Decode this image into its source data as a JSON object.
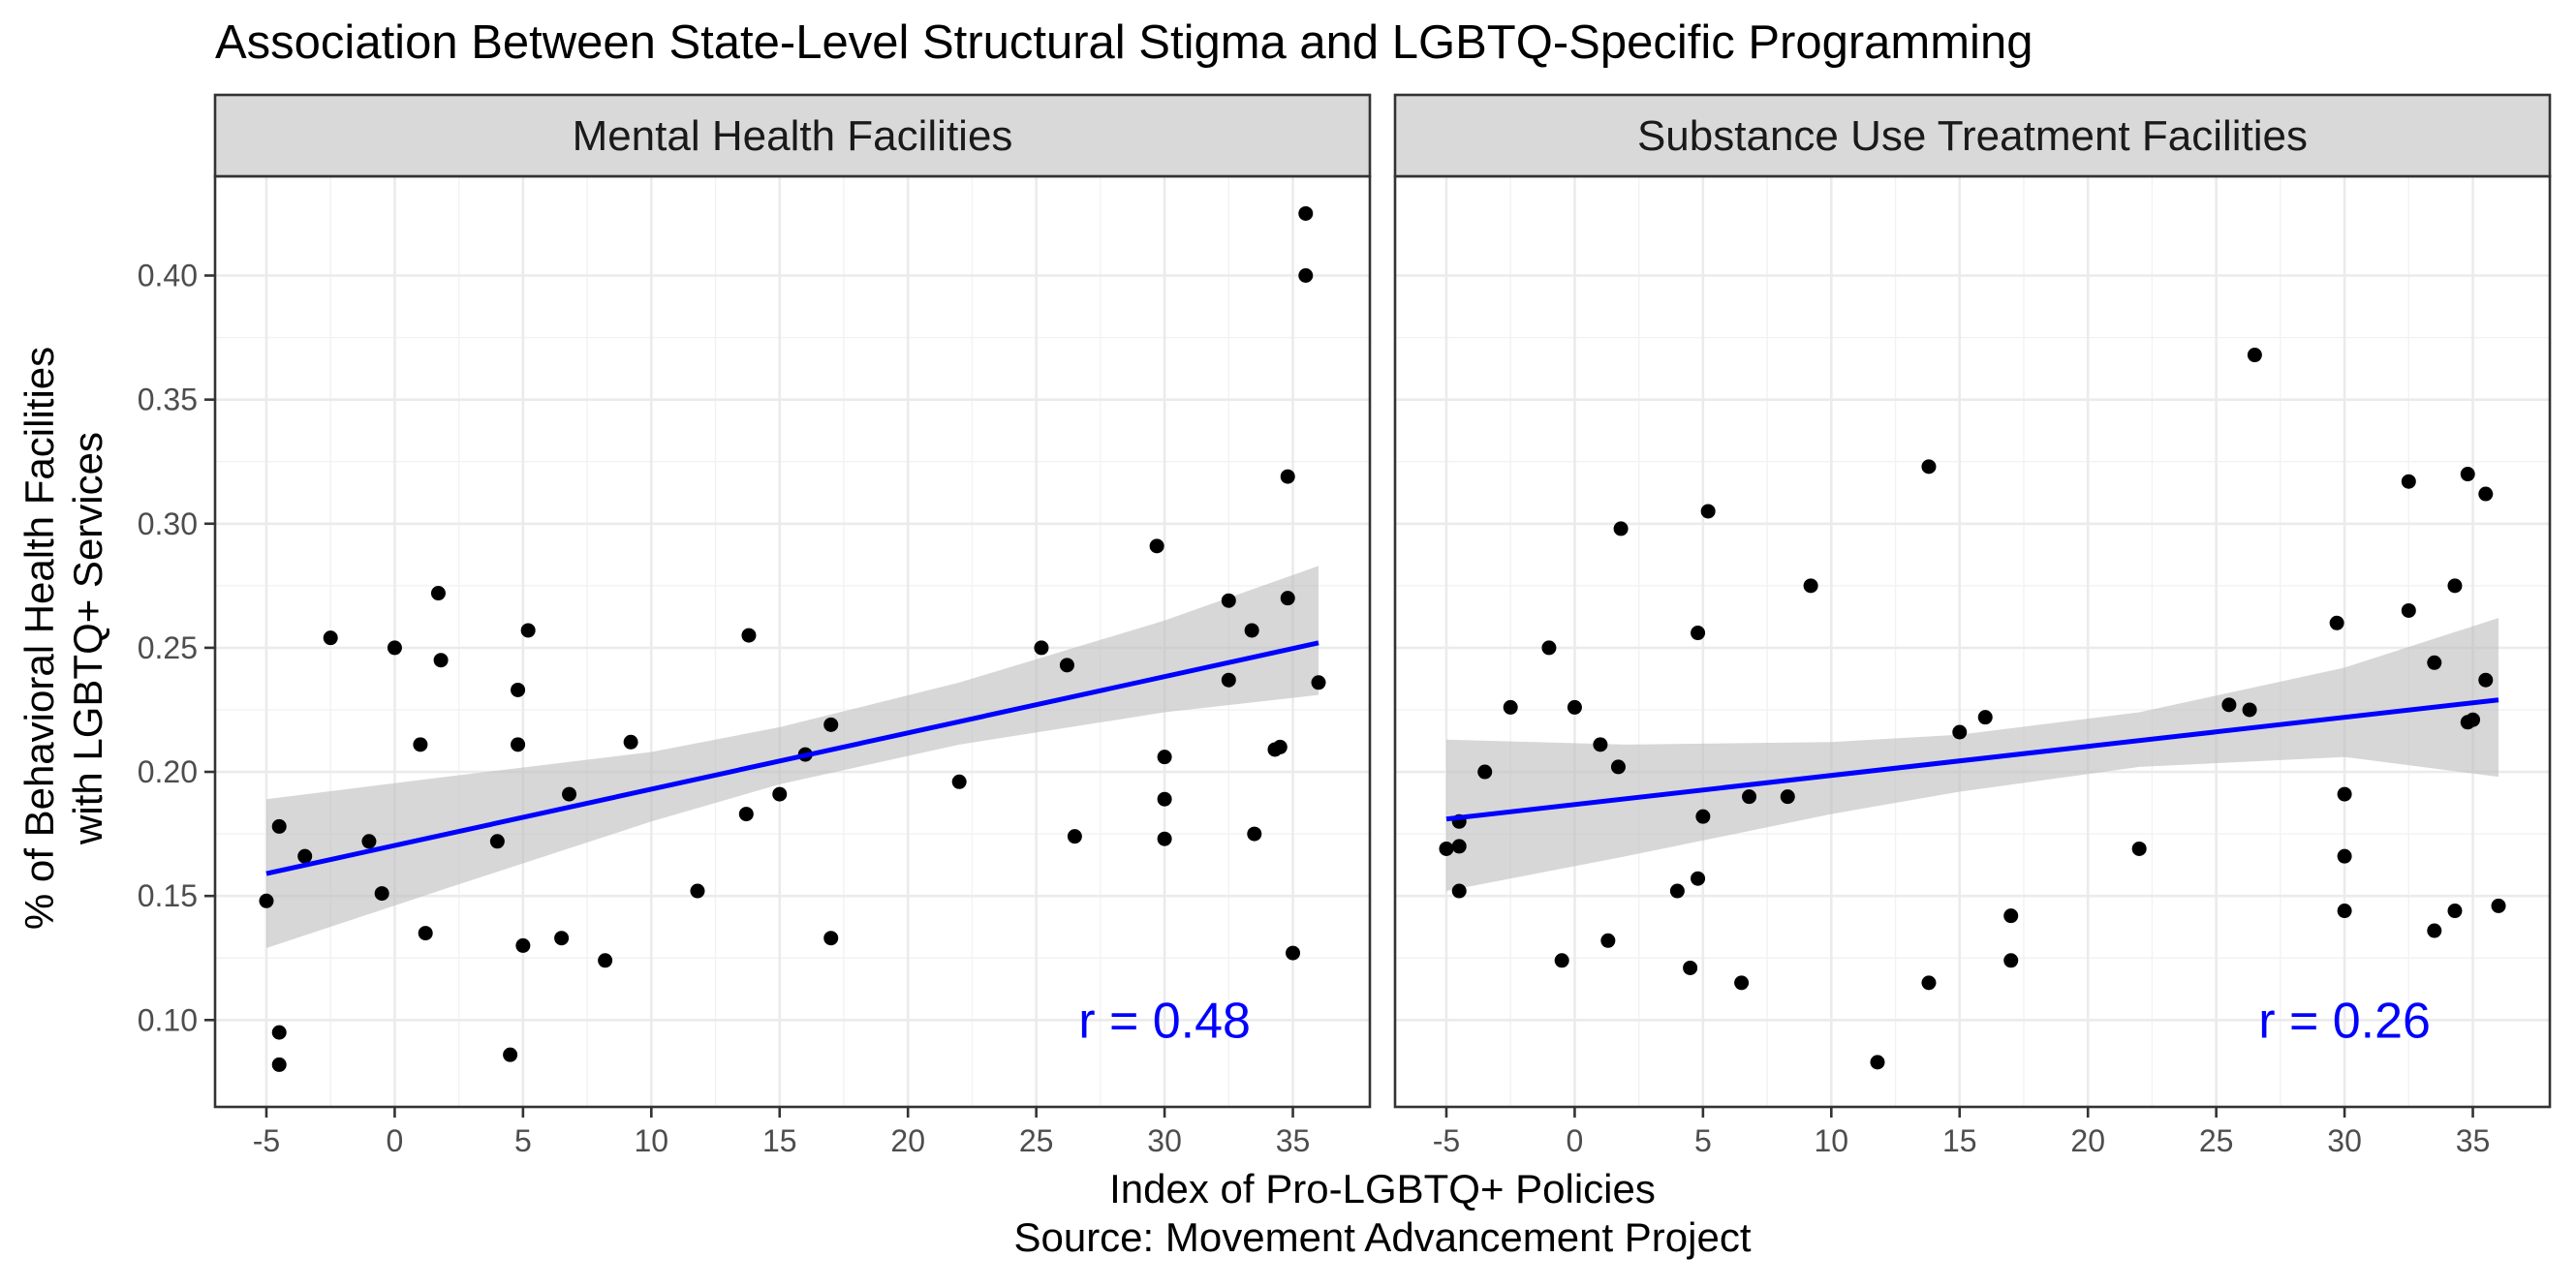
{
  "chart_data": {
    "type": "scatter",
    "title": "Association Between State-Level Structural Stigma and LGBTQ-Specific Programming",
    "xlabel": "Index of Pro-LGBTQ+ Policies",
    "caption": "Source: Movement Advancement Project",
    "ylabel_lines": [
      "% of Behavioral Health Facilities",
      "with LGBTQ+ Services"
    ],
    "xlim": [
      -7,
      38
    ],
    "ylim": [
      0.065,
      0.44
    ],
    "x_ticks": [
      -5,
      0,
      5,
      10,
      15,
      20,
      25,
      30,
      35
    ],
    "y_ticks": [
      0.1,
      0.15,
      0.2,
      0.25,
      0.3,
      0.35,
      0.4
    ],
    "y_tick_labels": [
      "0.10",
      "0.15",
      "0.20",
      "0.25",
      "0.30",
      "0.35",
      "0.40"
    ],
    "grid": true,
    "colors": {
      "points": "#000000",
      "fit_line": "#0000ff",
      "ribbon": "#bebebe",
      "strip_background": "#d9d9d9",
      "annotation": "#0000ff"
    },
    "panels": [
      {
        "strip_label": "Mental Health Facilities",
        "r_label": "r = 0.48",
        "r_position": [
          30,
          0.1
        ],
        "fit_line": {
          "x": [
            -5,
            36
          ],
          "y": [
            0.159,
            0.252
          ]
        },
        "ribbon": {
          "x": [
            -5,
            2,
            10,
            15,
            22,
            30,
            36
          ],
          "lower": [
            0.129,
            0.153,
            0.18,
            0.195,
            0.211,
            0.224,
            0.231
          ],
          "upper": [
            0.189,
            0.198,
            0.208,
            0.218,
            0.236,
            0.261,
            0.283
          ]
        },
        "points": [
          [
            -5,
            0.148
          ],
          [
            -4.5,
            0.178
          ],
          [
            -4.5,
            0.095
          ],
          [
            -4.5,
            0.082
          ],
          [
            -3.5,
            0.166
          ],
          [
            -2.5,
            0.254
          ],
          [
            -1,
            0.172
          ],
          [
            -0.5,
            0.151
          ],
          [
            0,
            0.25
          ],
          [
            1,
            0.211
          ],
          [
            1.2,
            0.135
          ],
          [
            1.7,
            0.272
          ],
          [
            1.8,
            0.245
          ],
          [
            4,
            0.172
          ],
          [
            4.5,
            0.086
          ],
          [
            4.8,
            0.233
          ],
          [
            4.8,
            0.211
          ],
          [
            5,
            0.13
          ],
          [
            5.2,
            0.257
          ],
          [
            6.5,
            0.133
          ],
          [
            6.8,
            0.191
          ],
          [
            8.2,
            0.124
          ],
          [
            9.2,
            0.212
          ],
          [
            11.8,
            0.152
          ],
          [
            13.7,
            0.183
          ],
          [
            13.8,
            0.255
          ],
          [
            15,
            0.191
          ],
          [
            16,
            0.207
          ],
          [
            17,
            0.219
          ],
          [
            17,
            0.133
          ],
          [
            22,
            0.196
          ],
          [
            25.2,
            0.25
          ],
          [
            26.2,
            0.243
          ],
          [
            26.5,
            0.174
          ],
          [
            29.7,
            0.291
          ],
          [
            30,
            0.206
          ],
          [
            30,
            0.189
          ],
          [
            30,
            0.173
          ],
          [
            32.5,
            0.269
          ],
          [
            32.5,
            0.237
          ],
          [
            33.4,
            0.257
          ],
          [
            33.5,
            0.175
          ],
          [
            34.3,
            0.209
          ],
          [
            34.5,
            0.21
          ],
          [
            34.8,
            0.319
          ],
          [
            34.8,
            0.27
          ],
          [
            35,
            0.127
          ],
          [
            35.5,
            0.425
          ],
          [
            35.5,
            0.4
          ],
          [
            36,
            0.236
          ]
        ]
      },
      {
        "strip_label": "Substance Use Treatment Facilities",
        "r_label": "r = 0.26",
        "r_position": [
          30,
          0.1
        ],
        "fit_line": {
          "x": [
            -5,
            36
          ],
          "y": [
            0.181,
            0.229
          ]
        },
        "ribbon": {
          "x": [
            -5,
            2,
            10,
            15,
            22,
            30,
            36
          ],
          "lower": [
            0.152,
            0.166,
            0.183,
            0.192,
            0.202,
            0.206,
            0.198
          ],
          "upper": [
            0.213,
            0.211,
            0.212,
            0.215,
            0.224,
            0.242,
            0.262
          ]
        },
        "points": [
          [
            -5,
            0.169
          ],
          [
            -4.5,
            0.18
          ],
          [
            -4.5,
            0.17
          ],
          [
            -4.5,
            0.152
          ],
          [
            -3.5,
            0.2
          ],
          [
            -2.5,
            0.226
          ],
          [
            -1,
            0.25
          ],
          [
            -0.5,
            0.124
          ],
          [
            0,
            0.226
          ],
          [
            1,
            0.211
          ],
          [
            1.3,
            0.132
          ],
          [
            1.7,
            0.202
          ],
          [
            1.8,
            0.298
          ],
          [
            4,
            0.152
          ],
          [
            4.5,
            0.121
          ],
          [
            4.8,
            0.256
          ],
          [
            4.8,
            0.157
          ],
          [
            5,
            0.182
          ],
          [
            5.2,
            0.305
          ],
          [
            6.5,
            0.115
          ],
          [
            6.8,
            0.19
          ],
          [
            8.3,
            0.19
          ],
          [
            9.2,
            0.275
          ],
          [
            11.8,
            0.083
          ],
          [
            13.8,
            0.323
          ],
          [
            13.8,
            0.115
          ],
          [
            15,
            0.216
          ],
          [
            16,
            0.222
          ],
          [
            17,
            0.142
          ],
          [
            17,
            0.124
          ],
          [
            22,
            0.169
          ],
          [
            25.5,
            0.227
          ],
          [
            26.3,
            0.225
          ],
          [
            26.5,
            0.368
          ],
          [
            29.7,
            0.26
          ],
          [
            30,
            0.191
          ],
          [
            30,
            0.166
          ],
          [
            30,
            0.144
          ],
          [
            32.5,
            0.265
          ],
          [
            32.5,
            0.317
          ],
          [
            33.5,
            0.244
          ],
          [
            33.5,
            0.136
          ],
          [
            34.3,
            0.275
          ],
          [
            34.3,
            0.144
          ],
          [
            34.8,
            0.22
          ],
          [
            34.8,
            0.32
          ],
          [
            35,
            0.221
          ],
          [
            35.5,
            0.312
          ],
          [
            35.5,
            0.237
          ],
          [
            36,
            0.146
          ]
        ]
      }
    ]
  }
}
